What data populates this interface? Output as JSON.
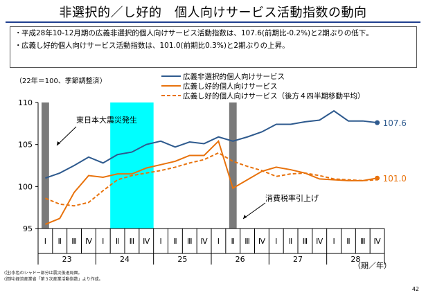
{
  "title": "非選択的／し好的　個人向けサービス活動指数の動向",
  "bullets": [
    "平成28年10-12月期の広義非選択的個人向けサービス活動指数は、107.6(前期比-0.2%)と2期ぶりの低下。",
    "広義し好的個人向けサービス活動指数は、101.0(前期比0.3%)と2期ぶりの上昇。"
  ],
  "bullet_mark": "・",
  "index_note": "（22年＝100、季節調整済）",
  "footnotes": [
    "(注)水色のシャドー部分は震災後退局面。",
    "(資料)経済産業省「第３次産業活動指数」より作成。"
  ],
  "page_number": "42",
  "annotations": {
    "earthquake": "東日本大震災発生",
    "tax": "消費税率引上げ",
    "period_unit": "（期／年）"
  },
  "colors": {
    "non_selective": "#2e5a8e",
    "preference": "#e8720c",
    "recession_shade": "#00ffff",
    "gray_shade": "#7a7a7a"
  },
  "chart_data": {
    "type": "line",
    "ylim": [
      95,
      110
    ],
    "yticks": [
      95,
      100,
      105,
      110
    ],
    "quarters": [
      "Ⅰ",
      "Ⅱ",
      "Ⅲ",
      "Ⅳ",
      "Ⅰ",
      "Ⅱ",
      "Ⅲ",
      "Ⅳ",
      "Ⅰ",
      "Ⅱ",
      "Ⅲ",
      "Ⅳ",
      "Ⅰ",
      "Ⅱ",
      "Ⅲ",
      "Ⅳ",
      "Ⅰ",
      "Ⅱ",
      "Ⅲ",
      "Ⅳ",
      "Ⅰ",
      "Ⅱ",
      "Ⅲ",
      "Ⅳ"
    ],
    "years": [
      "23",
      "24",
      "25",
      "26",
      "27",
      "28"
    ],
    "series": [
      {
        "name": "広義非選択的個人向けサービス",
        "color": "#2e5a8e",
        "dash": "solid",
        "values": [
          101.0,
          101.6,
          102.5,
          103.5,
          102.8,
          103.8,
          104.1,
          105.0,
          105.4,
          104.7,
          105.3,
          105.1,
          105.9,
          105.4,
          105.9,
          106.5,
          107.4,
          107.4,
          107.7,
          107.9,
          109.0,
          107.8,
          107.8,
          107.6
        ],
        "end_label": "107.6"
      },
      {
        "name": "広義し好的個人向けサービス",
        "color": "#e8720c",
        "dash": "solid",
        "values": [
          95.5,
          96.2,
          99.3,
          101.3,
          101.1,
          101.5,
          101.5,
          102.2,
          102.6,
          103.0,
          103.7,
          103.7,
          105.4,
          99.8,
          100.8,
          101.8,
          102.3,
          102.0,
          101.6,
          100.9,
          100.8,
          100.7,
          100.7,
          101.0
        ],
        "end_label": "101.0"
      },
      {
        "name": "広義し好的個人向けサービス（後方４四半期移動平均）",
        "color": "#e8720c",
        "dash": "dashed",
        "values": [
          98.6,
          97.9,
          97.7,
          98.1,
          99.5,
          100.8,
          101.3,
          101.6,
          101.9,
          102.3,
          102.8,
          103.2,
          104.0,
          103.0,
          102.4,
          101.9,
          101.2,
          101.5,
          101.6,
          101.3,
          100.9,
          100.8,
          100.7,
          100.8
        ]
      }
    ],
    "shaded_quarters": [
      {
        "start": 0,
        "end": 0,
        "kind": "gray"
      },
      {
        "start": 5,
        "end": 7,
        "kind": "cyan"
      },
      {
        "start": 13,
        "end": 13,
        "kind": "gray"
      }
    ]
  }
}
